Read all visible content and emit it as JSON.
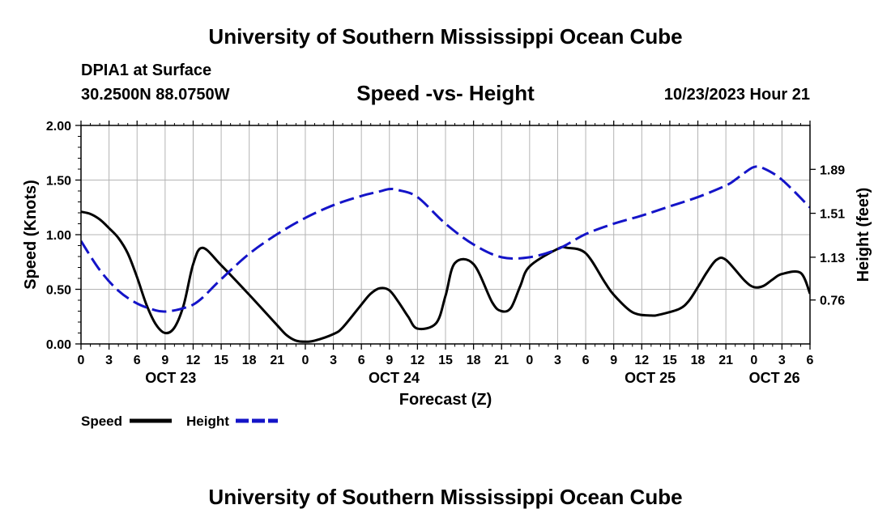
{
  "header": {
    "title": "University of Southern Mississippi Ocean Cube",
    "station": "DPIA1 at Surface",
    "coordinates": "30.2500N  88.0750W",
    "datetime": "10/23/2023 Hour 21"
  },
  "footer": {
    "title": "University of Southern Mississippi Ocean Cube"
  },
  "chart_data": {
    "type": "line",
    "title": "Speed -vs- Height",
    "xlabel": "Forecast (Z)",
    "ylabel_left": "Speed (Knots)",
    "ylabel_right": "Height (feet)",
    "x_range_hours": [
      0,
      78
    ],
    "ylim_left": [
      0,
      2.0
    ],
    "ylim_right": [
      0.38,
      2.27
    ],
    "left_ticks": [
      "0.00",
      "0.50",
      "1.00",
      "1.50",
      "2.00"
    ],
    "right_ticks": [
      {
        "label": "0.76",
        "value": 0.76
      },
      {
        "label": "1.13",
        "value": 1.13
      },
      {
        "label": "1.51",
        "value": 1.51
      },
      {
        "label": "1.89",
        "value": 1.89
      }
    ],
    "x_tick_labels": [
      "0",
      "3",
      "6",
      "9",
      "12",
      "15",
      "18",
      "21",
      "0",
      "3",
      "6",
      "9",
      "12",
      "15",
      "18",
      "21",
      "0",
      "3",
      "6",
      "9",
      "12",
      "15",
      "18",
      "21",
      "0",
      "3",
      "6"
    ],
    "date_labels": [
      {
        "label": "OCT 23",
        "hour": 9.6
      },
      {
        "label": "OCT 24",
        "hour": 33.5
      },
      {
        "label": "OCT 25",
        "hour": 60.9
      },
      {
        "label": "OCT 26",
        "hour": 74.2
      }
    ],
    "grid": true,
    "legend": [
      {
        "name": "Speed",
        "color": "#000000",
        "style": "solid"
      },
      {
        "name": "Height",
        "color": "#1414c8",
        "style": "dashed"
      }
    ],
    "series": [
      {
        "name": "Speed",
        "axis": "left",
        "color": "#000000",
        "dash": false,
        "x": [
          0,
          1,
          2,
          3,
          4,
          5,
          6,
          7,
          8,
          9,
          10,
          11,
          12,
          13,
          15,
          18,
          21,
          22,
          23,
          24,
          25,
          27,
          28,
          30,
          31,
          32,
          33,
          34,
          35,
          36,
          38,
          39,
          40,
          42,
          44,
          45,
          46,
          47,
          48,
          51,
          52,
          54,
          56,
          57,
          59,
          61,
          62,
          64,
          65,
          66,
          67,
          68,
          69,
          71,
          72,
          73,
          74,
          75,
          77,
          78
        ],
        "values": [
          1.21,
          1.19,
          1.14,
          1.06,
          0.97,
          0.83,
          0.61,
          0.36,
          0.18,
          0.1,
          0.15,
          0.36,
          0.73,
          0.88,
          0.72,
          0.45,
          0.17,
          0.08,
          0.03,
          0.02,
          0.03,
          0.09,
          0.15,
          0.36,
          0.46,
          0.51,
          0.49,
          0.38,
          0.25,
          0.14,
          0.19,
          0.44,
          0.74,
          0.73,
          0.38,
          0.3,
          0.33,
          0.53,
          0.71,
          0.87,
          0.88,
          0.83,
          0.57,
          0.45,
          0.29,
          0.26,
          0.27,
          0.32,
          0.39,
          0.52,
          0.66,
          0.77,
          0.77,
          0.58,
          0.52,
          0.53,
          0.59,
          0.64,
          0.65,
          0.46
        ]
      },
      {
        "name": "Height",
        "axis": "right",
        "color": "#1414c8",
        "dash": true,
        "x": [
          0,
          2,
          4,
          6,
          8,
          9,
          10,
          11,
          12,
          13,
          15,
          18,
          21,
          24,
          27,
          30,
          32,
          33,
          34,
          36,
          39,
          42,
          45,
          48,
          51,
          54,
          57,
          60,
          63,
          66,
          69,
          70,
          71,
          72,
          73,
          75,
          78
        ],
        "values": [
          1.27,
          1.02,
          0.84,
          0.73,
          0.67,
          0.66,
          0.67,
          0.69,
          0.72,
          0.78,
          0.94,
          1.16,
          1.33,
          1.47,
          1.58,
          1.66,
          1.7,
          1.72,
          1.71,
          1.65,
          1.42,
          1.24,
          1.13,
          1.13,
          1.2,
          1.33,
          1.42,
          1.49,
          1.57,
          1.65,
          1.75,
          1.8,
          1.86,
          1.91,
          1.9,
          1.8,
          1.56
        ]
      }
    ]
  }
}
